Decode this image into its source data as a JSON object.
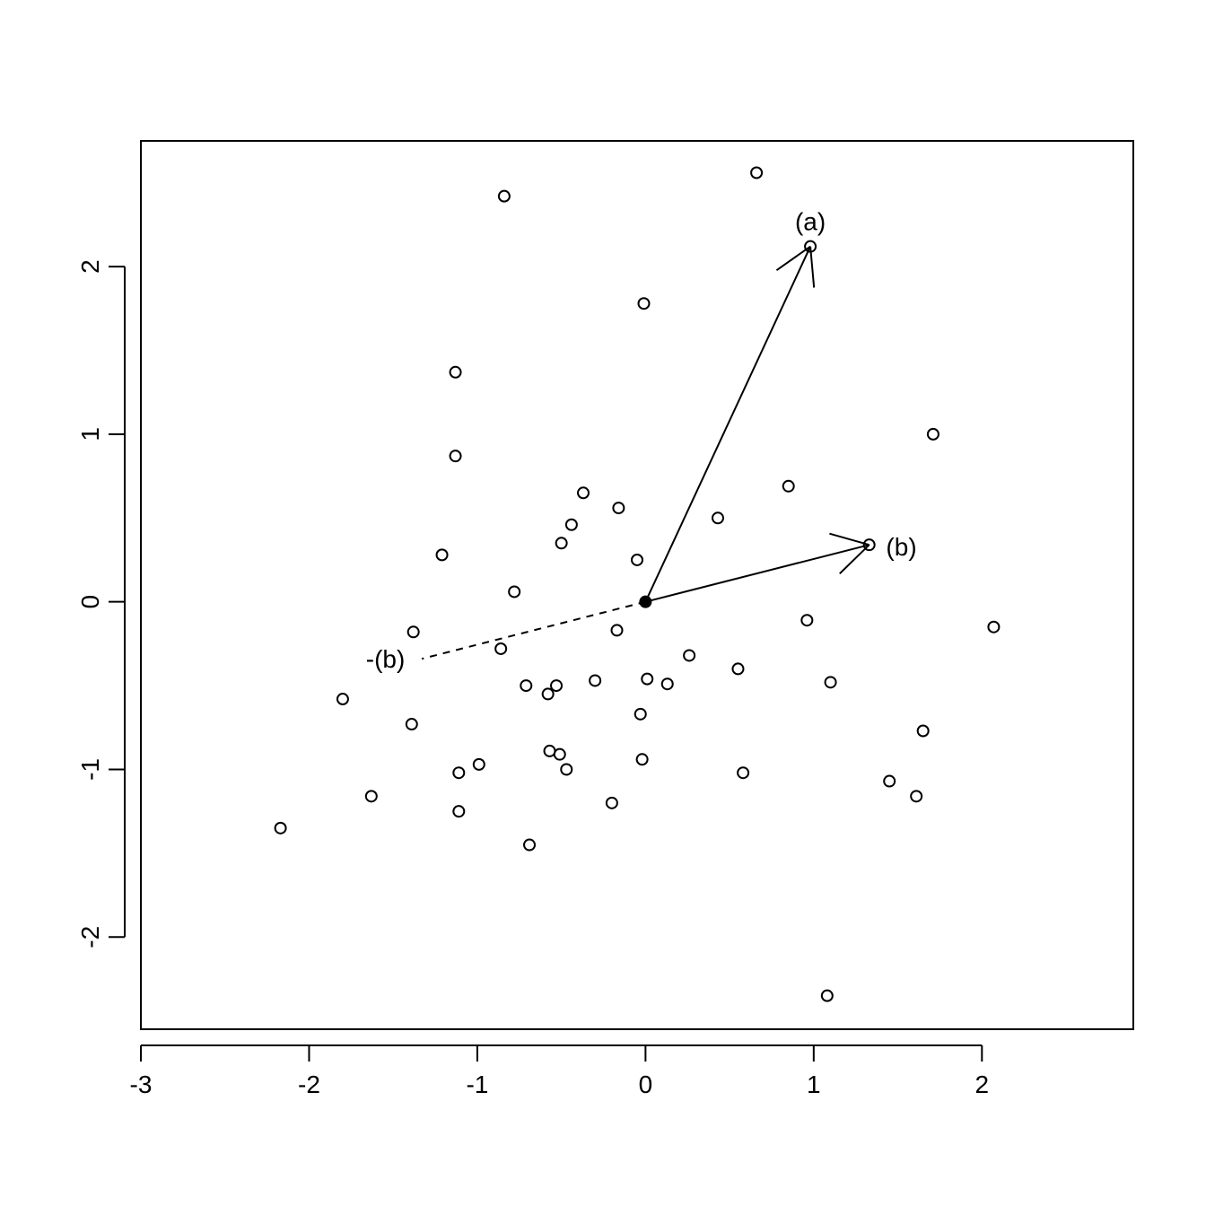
{
  "chart_data": {
    "type": "scatter",
    "title": "",
    "xlabel": "",
    "ylabel": "",
    "xlim": [
      -3,
      2.9
    ],
    "ylim": [
      -2.55,
      2.75
    ],
    "x_ticks": [
      {
        "value": -3,
        "label": "-3"
      },
      {
        "value": -2,
        "label": "-2"
      },
      {
        "value": -1,
        "label": "-1"
      },
      {
        "value": 0,
        "label": "0"
      },
      {
        "value": 1,
        "label": "1"
      },
      {
        "value": 2,
        "label": "2"
      }
    ],
    "y_ticks": [
      {
        "value": -2,
        "label": "-2"
      },
      {
        "value": -1,
        "label": "-1"
      },
      {
        "value": 0,
        "label": "0"
      },
      {
        "value": 1,
        "label": "1"
      },
      {
        "value": 2,
        "label": "2"
      }
    ],
    "grid": false,
    "legend": "none",
    "points": [
      {
        "x": 0.66,
        "y": 2.56
      },
      {
        "x": -0.84,
        "y": 2.42
      },
      {
        "x": 0.98,
        "y": 2.12
      },
      {
        "x": -0.01,
        "y": 1.78
      },
      {
        "x": -1.13,
        "y": 1.37
      },
      {
        "x": 1.71,
        "y": 1.0
      },
      {
        "x": -1.13,
        "y": 0.87
      },
      {
        "x": 0.85,
        "y": 0.69
      },
      {
        "x": -0.37,
        "y": 0.65
      },
      {
        "x": -0.16,
        "y": 0.56
      },
      {
        "x": 0.43,
        "y": 0.5
      },
      {
        "x": -0.44,
        "y": 0.46
      },
      {
        "x": -0.5,
        "y": 0.35
      },
      {
        "x": 1.33,
        "y": 0.34
      },
      {
        "x": -1.21,
        "y": 0.28
      },
      {
        "x": -0.05,
        "y": 0.25
      },
      {
        "x": -0.78,
        "y": 0.06
      },
      {
        "x": 0.96,
        "y": -0.11
      },
      {
        "x": 2.07,
        "y": -0.15
      },
      {
        "x": -0.17,
        "y": -0.17
      },
      {
        "x": -1.38,
        "y": -0.18
      },
      {
        "x": -0.86,
        "y": -0.28
      },
      {
        "x": 0.26,
        "y": -0.32
      },
      {
        "x": 0.55,
        "y": -0.4
      },
      {
        "x": 0.01,
        "y": -0.46
      },
      {
        "x": -0.3,
        "y": -0.47
      },
      {
        "x": 1.1,
        "y": -0.48
      },
      {
        "x": 0.13,
        "y": -0.49
      },
      {
        "x": -0.71,
        "y": -0.5
      },
      {
        "x": -0.53,
        "y": -0.5
      },
      {
        "x": -0.58,
        "y": -0.55
      },
      {
        "x": -1.8,
        "y": -0.58
      },
      {
        "x": -0.03,
        "y": -0.67
      },
      {
        "x": -1.39,
        "y": -0.73
      },
      {
        "x": 1.65,
        "y": -0.77
      },
      {
        "x": -0.57,
        "y": -0.89
      },
      {
        "x": -0.51,
        "y": -0.91
      },
      {
        "x": -0.02,
        "y": -0.94
      },
      {
        "x": -0.99,
        "y": -0.97
      },
      {
        "x": -0.47,
        "y": -1.0
      },
      {
        "x": -1.11,
        "y": -1.02
      },
      {
        "x": 0.58,
        "y": -1.02
      },
      {
        "x": 1.45,
        "y": -1.07
      },
      {
        "x": -1.63,
        "y": -1.16
      },
      {
        "x": 1.61,
        "y": -1.16
      },
      {
        "x": -0.2,
        "y": -1.2
      },
      {
        "x": -1.11,
        "y": -1.25
      },
      {
        "x": -2.17,
        "y": -1.35
      },
      {
        "x": -0.69,
        "y": -1.45
      },
      {
        "x": 1.08,
        "y": -2.35
      }
    ],
    "origin_point": {
      "x": 0,
      "y": 0,
      "filled": true
    },
    "vectors": [
      {
        "id": "a",
        "from": [
          0,
          0
        ],
        "to": [
          0.98,
          2.12
        ],
        "style": "solid",
        "arrowhead": true
      },
      {
        "id": "b",
        "from": [
          0,
          0
        ],
        "to": [
          1.33,
          0.34
        ],
        "style": "solid",
        "arrowhead": true
      },
      {
        "id": "neg-b",
        "from": [
          0,
          0
        ],
        "to": [
          -1.33,
          -0.34
        ],
        "style": "dashed",
        "arrowhead": false
      }
    ],
    "annotations": [
      {
        "text": "(a)",
        "x": 0.98,
        "y": 2.27,
        "anchor": "middle"
      },
      {
        "text": "(b)",
        "x": 1.43,
        "y": 0.33,
        "anchor": "start"
      },
      {
        "text": "-(b)",
        "x": -1.43,
        "y": -0.34,
        "anchor": "end"
      }
    ]
  }
}
